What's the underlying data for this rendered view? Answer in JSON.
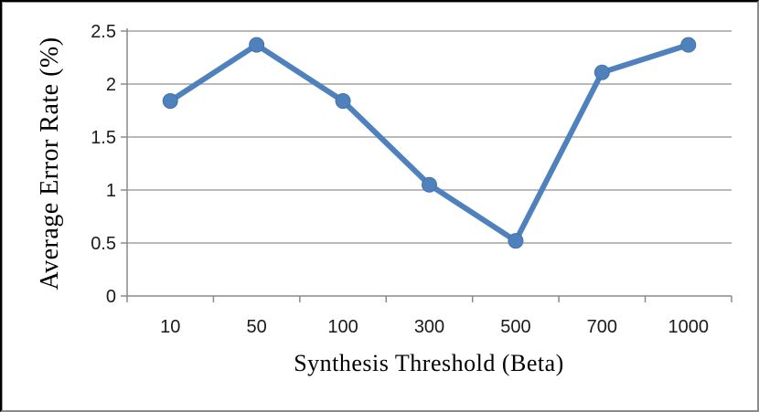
{
  "chart_data": {
    "type": "line",
    "title": "",
    "xlabel": "Synthesis Threshold (Beta)",
    "ylabel": "Average Error Rate (%)",
    "categories": [
      "10",
      "50",
      "100",
      "300",
      "500",
      "700",
      "1000"
    ],
    "series": [
      {
        "name": "Average Error Rate (%)",
        "values": [
          1.84,
          2.37,
          1.84,
          1.05,
          0.52,
          2.11,
          2.37
        ]
      }
    ],
    "ylim": [
      0,
      2.5
    ],
    "ytick_values": [
      0,
      0.5,
      1,
      1.5,
      2,
      2.5
    ],
    "ytick_labels": [
      "0",
      "0.5",
      "1",
      "1.5",
      "2",
      "2.5"
    ],
    "grid": true,
    "legend": false,
    "legend_position": "none",
    "line_color": "#4F81BD",
    "marker": "circle",
    "marker_edge_color": "#4173AC",
    "gridline_color": "#A3A3A3",
    "axis_color": "#8A8A8A",
    "text_color": "#1A1A1A"
  }
}
